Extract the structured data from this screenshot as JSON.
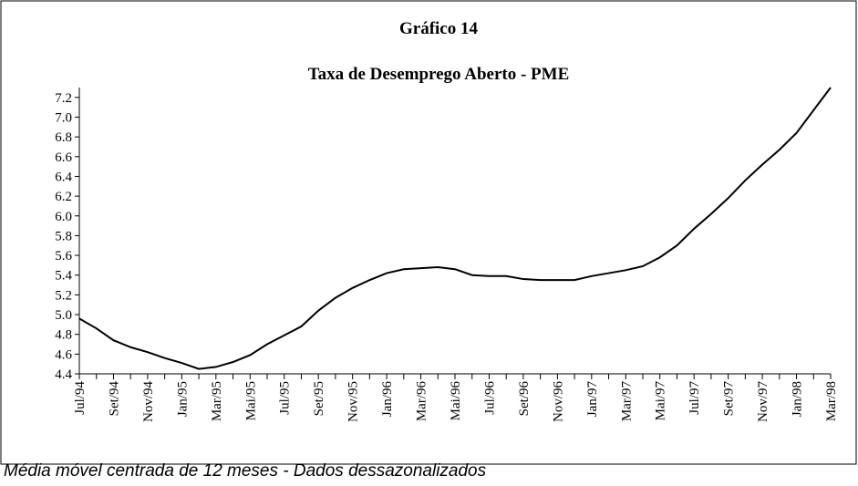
{
  "chart_data": {
    "type": "line",
    "title": "Gráfico 14",
    "subtitle": "Taxa de Desemprego Aberto - PME",
    "note": "Média móvel centrada de 12 meses - Dados dessazonalizados",
    "categories": [
      "Jul/94",
      null,
      "Set/94",
      null,
      "Nov/94",
      null,
      "Jan/95",
      null,
      "Mar/95",
      null,
      "Mai/95",
      null,
      "Jul/95",
      null,
      "Set/95",
      null,
      "Nov/95",
      null,
      "Jan/96",
      null,
      "Mar/96",
      null,
      "Mai/96",
      null,
      "Jul/96",
      null,
      "Set/96",
      null,
      "Nov/96",
      null,
      "Jan/97",
      null,
      "Mar/97",
      null,
      "Mai/97",
      null,
      "Jul/97",
      null,
      "Set/97",
      null,
      "Nov/97",
      null,
      "Jan/98",
      null,
      "Mar/98"
    ],
    "values": [
      4.96,
      4.86,
      4.74,
      4.67,
      4.62,
      4.56,
      4.51,
      4.45,
      4.47,
      4.52,
      4.59,
      4.7,
      4.79,
      4.88,
      5.04,
      5.17,
      5.27,
      5.35,
      5.42,
      5.46,
      5.47,
      5.48,
      5.46,
      5.4,
      5.39,
      5.39,
      5.36,
      5.35,
      5.35,
      5.35,
      5.39,
      5.42,
      5.45,
      5.49,
      5.58,
      5.7,
      5.87,
      6.02,
      6.18,
      6.36,
      6.52,
      6.67,
      6.84,
      7.07,
      7.3
    ],
    "color": "#000000",
    "ylim": [
      4.4,
      7.3
    ],
    "yticks": [
      4.4,
      4.6,
      4.8,
      {
        "value": 5.0,
        "label": "5.0"
      },
      5.2,
      5.4,
      5.6,
      5.8,
      {
        "value": 6.0,
        "label": "6.0"
      },
      6.2,
      6.4,
      6.6,
      6.8,
      {
        "value": 7.0,
        "label": "7.0"
      },
      7.2
    ],
    "grid": false
  }
}
